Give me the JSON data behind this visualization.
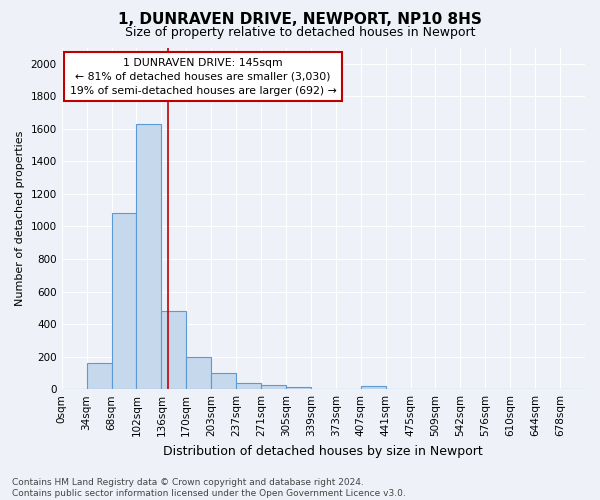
{
  "title": "1, DUNRAVEN DRIVE, NEWPORT, NP10 8HS",
  "subtitle": "Size of property relative to detached houses in Newport",
  "xlabel": "Distribution of detached houses by size in Newport",
  "ylabel": "Number of detached properties",
  "categories": [
    "0sqm",
    "34sqm",
    "68sqm",
    "102sqm",
    "136sqm",
    "170sqm",
    "203sqm",
    "237sqm",
    "271sqm",
    "305sqm",
    "339sqm",
    "373sqm",
    "407sqm",
    "441sqm",
    "475sqm",
    "509sqm",
    "542sqm",
    "576sqm",
    "610sqm",
    "644sqm",
    "678sqm"
  ],
  "values": [
    0,
    162,
    1080,
    1630,
    480,
    200,
    100,
    38,
    25,
    15,
    0,
    0,
    20,
    0,
    0,
    0,
    0,
    0,
    0,
    0,
    0
  ],
  "bar_color": "#c5d8ec",
  "bar_edge_color": "#5b9bd5",
  "vline_color": "#c00000",
  "annotation_line1": "1 DUNRAVEN DRIVE: 145sqm",
  "annotation_line2": "← 81% of detached houses are smaller (3,030)",
  "annotation_line3": "19% of semi-detached houses are larger (692) →",
  "annotation_box_color": "#ffffff",
  "annotation_box_edge": "#c00000",
  "footer_text": "Contains HM Land Registry data © Crown copyright and database right 2024.\nContains public sector information licensed under the Open Government Licence v3.0.",
  "ylim": [
    0,
    2100
  ],
  "yticks": [
    0,
    200,
    400,
    600,
    800,
    1000,
    1200,
    1400,
    1600,
    1800,
    2000
  ],
  "background_color": "#eef2f8",
  "plot_background": "#eef2f8",
  "title_fontsize": 11,
  "subtitle_fontsize": 9,
  "ylabel_fontsize": 8,
  "xlabel_fontsize": 9,
  "tick_fontsize": 7.5,
  "footer_fontsize": 6.5
}
